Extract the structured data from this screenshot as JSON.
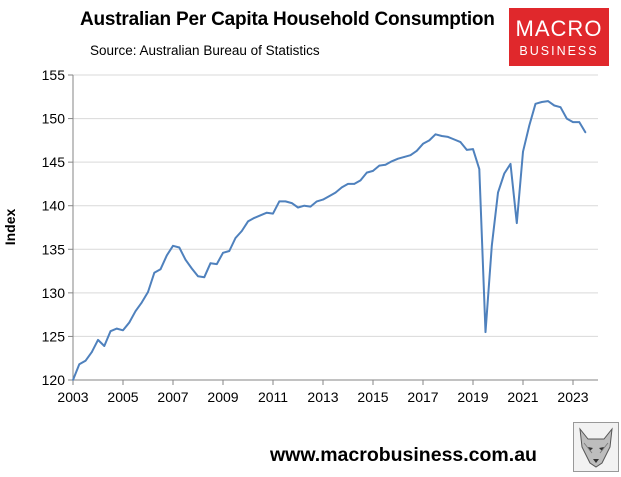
{
  "header": {
    "title": "Australian Per Capita Household Consumption",
    "source": "Source: Australian Bureau of Statistics"
  },
  "logo": {
    "line1": "MACRO",
    "line2": "BUSINESS",
    "color": "#e0282c"
  },
  "footer": {
    "website": "www.macrobusiness.com.au",
    "mascot_icon": "wolf-icon"
  },
  "chart_data": {
    "type": "line",
    "title": "Australian Per Capita Household Consumption",
    "xlabel": "",
    "ylabel": "Index",
    "xlim": [
      2003,
      2024
    ],
    "ylim": [
      120,
      155
    ],
    "yticks": [
      120,
      125,
      130,
      135,
      140,
      145,
      150,
      155
    ],
    "xticks": [
      2003,
      2005,
      2007,
      2009,
      2011,
      2013,
      2015,
      2017,
      2019,
      2021,
      2023
    ],
    "grid": "horizontal",
    "legend": "none",
    "line_color": "#4f81bd",
    "series": [
      {
        "x": [
          2003.0,
          2003.25,
          2003.5,
          2003.75,
          2004.0,
          2004.25,
          2004.5,
          2004.75,
          2005.0,
          2005.25,
          2005.5,
          2005.75,
          2006.0,
          2006.25,
          2006.5,
          2006.75,
          2007.0,
          2007.25,
          2007.5,
          2007.75,
          2008.0,
          2008.25,
          2008.5,
          2008.75,
          2009.0,
          2009.25,
          2009.5,
          2009.75,
          2010.0,
          2010.25,
          2010.5,
          2010.75,
          2011.0,
          2011.25,
          2011.5,
          2011.75,
          2012.0,
          2012.25,
          2012.5,
          2012.75,
          2013.0,
          2013.25,
          2013.5,
          2013.75,
          2014.0,
          2014.25,
          2014.5,
          2014.75,
          2015.0,
          2015.25,
          2015.5,
          2015.75,
          2016.0,
          2016.25,
          2016.5,
          2016.75,
          2017.0,
          2017.25,
          2017.5,
          2017.75,
          2018.0,
          2018.25,
          2018.5,
          2018.75,
          2019.0,
          2019.25,
          2019.5,
          2019.75,
          2020.0,
          2020.25,
          2020.5,
          2020.75,
          2021.0,
          2021.25,
          2021.5,
          2021.75,
          2022.0,
          2022.25,
          2022.5,
          2022.75,
          2023.0,
          2023.25,
          2023.5
        ],
        "values": [
          120.0,
          121.8,
          122.2,
          123.2,
          124.6,
          123.9,
          125.6,
          125.9,
          125.7,
          126.6,
          127.9,
          128.9,
          130.1,
          132.3,
          132.7,
          134.3,
          135.4,
          135.2,
          133.8,
          132.8,
          131.9,
          131.8,
          133.4,
          133.3,
          134.6,
          134.8,
          136.3,
          137.1,
          138.2,
          138.6,
          138.9,
          139.2,
          139.1,
          140.5,
          140.5,
          140.3,
          139.8,
          140.0,
          139.9,
          140.5,
          140.7,
          141.1,
          141.5,
          142.1,
          142.5,
          142.5,
          142.9,
          143.8,
          144.0,
          144.6,
          144.7,
          145.1,
          145.4,
          145.6,
          145.8,
          146.3,
          147.1,
          147.5,
          148.2,
          148.0,
          147.9,
          147.6,
          147.3,
          146.4,
          146.5,
          144.2,
          125.5,
          135.4,
          141.5,
          143.7,
          144.8,
          138.0,
          146.2,
          149.2,
          151.7,
          151.9,
          152.0,
          151.5,
          151.3,
          150.0,
          149.6,
          149.6,
          148.4
        ]
      }
    ]
  }
}
